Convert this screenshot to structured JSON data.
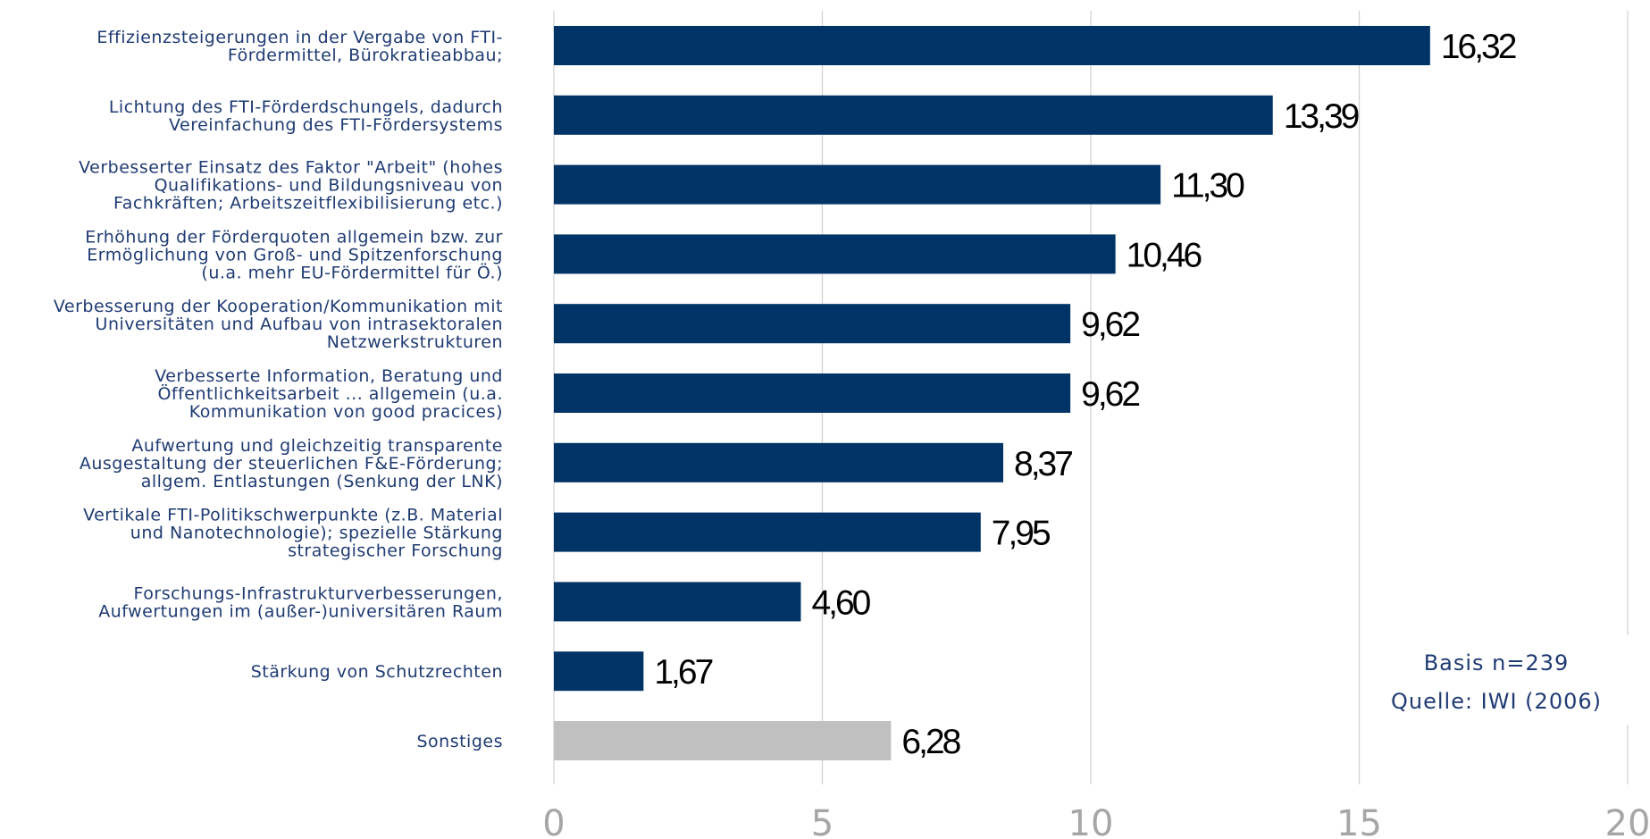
{
  "chart_data": {
    "type": "bar",
    "orientation": "horizontal",
    "categories": [
      [
        "Effizienzsteigerungen in der Vergabe von FTI-",
        "Fördermittel, Bürokratieabbau;"
      ],
      [
        "Lichtung des FTI-Förderdschungels, dadurch",
        "Vereinfachung des FTI-Fördersystems"
      ],
      [
        "Verbesserter Einsatz des Faktor \"Arbeit\" (hohes",
        "Qualifikations- und Bildungsniveau von",
        "Fachkräften; Arbeitszeitflexibilisierung etc.)"
      ],
      [
        "Erhöhung der Förderquoten allgemein bzw. zur",
        "Ermöglichung von Groß- und Spitzenforschung",
        "(u.a. mehr EU-Fördermittel für Ö.)"
      ],
      [
        "Verbesserung der Kooperation/Kommunikation mit",
        "Universitäten und Aufbau von intrasektoralen",
        "Netzwerkstrukturen"
      ],
      [
        "Verbesserte Information, Beratung und",
        "Öffentlichkeitsarbeit ... allgemein (u.a.",
        "Kommunikation von good pracices)"
      ],
      [
        "Aufwertung und gleichzeitig transparente",
        "Ausgestaltung der steuerlichen F&E-Förderung;",
        "allgem. Entlastungen (Senkung der LNK)"
      ],
      [
        "Vertikale FTI-Politikschwerpunkte (z.B. Material",
        "und Nanotechnologie); spezielle Stärkung",
        "strategischer Forschung"
      ],
      [
        "Forschungs-Infrastrukturverbesserungen,",
        "Aufwertungen im (außer-)universitären Raum"
      ],
      [
        "Stärkung von Schutzrechten"
      ],
      [
        "Sonstiges"
      ]
    ],
    "values": [
      16.32,
      13.39,
      11.3,
      10.46,
      9.62,
      9.62,
      8.37,
      7.95,
      4.6,
      1.67,
      6.28
    ],
    "value_labels": [
      "16,32",
      "13,39",
      "11,30",
      "10,46",
      "9,62",
      "9,62",
      "8,37",
      "7,95",
      "4,60",
      "1,67",
      "6,28"
    ],
    "bar_colors": [
      "#003366",
      "#003366",
      "#003366",
      "#003366",
      "#003366",
      "#003366",
      "#003366",
      "#003366",
      "#003366",
      "#003366",
      "#c0c0c0"
    ],
    "x_ticks": [
      "0",
      "5",
      "10",
      "15",
      "20"
    ],
    "xlim": [
      0,
      20
    ],
    "grid": true,
    "title": "",
    "xlabel": "",
    "ylabel": "",
    "notes": [
      "Basis n=239",
      "Quelle: IWI (2006)"
    ],
    "colors": {
      "bar": "#003366",
      "bar_other": "#c0c0c0",
      "label_text": "#1f3b73",
      "tick_text": "#a6a6a6",
      "grid": "#d0d0d0"
    }
  }
}
